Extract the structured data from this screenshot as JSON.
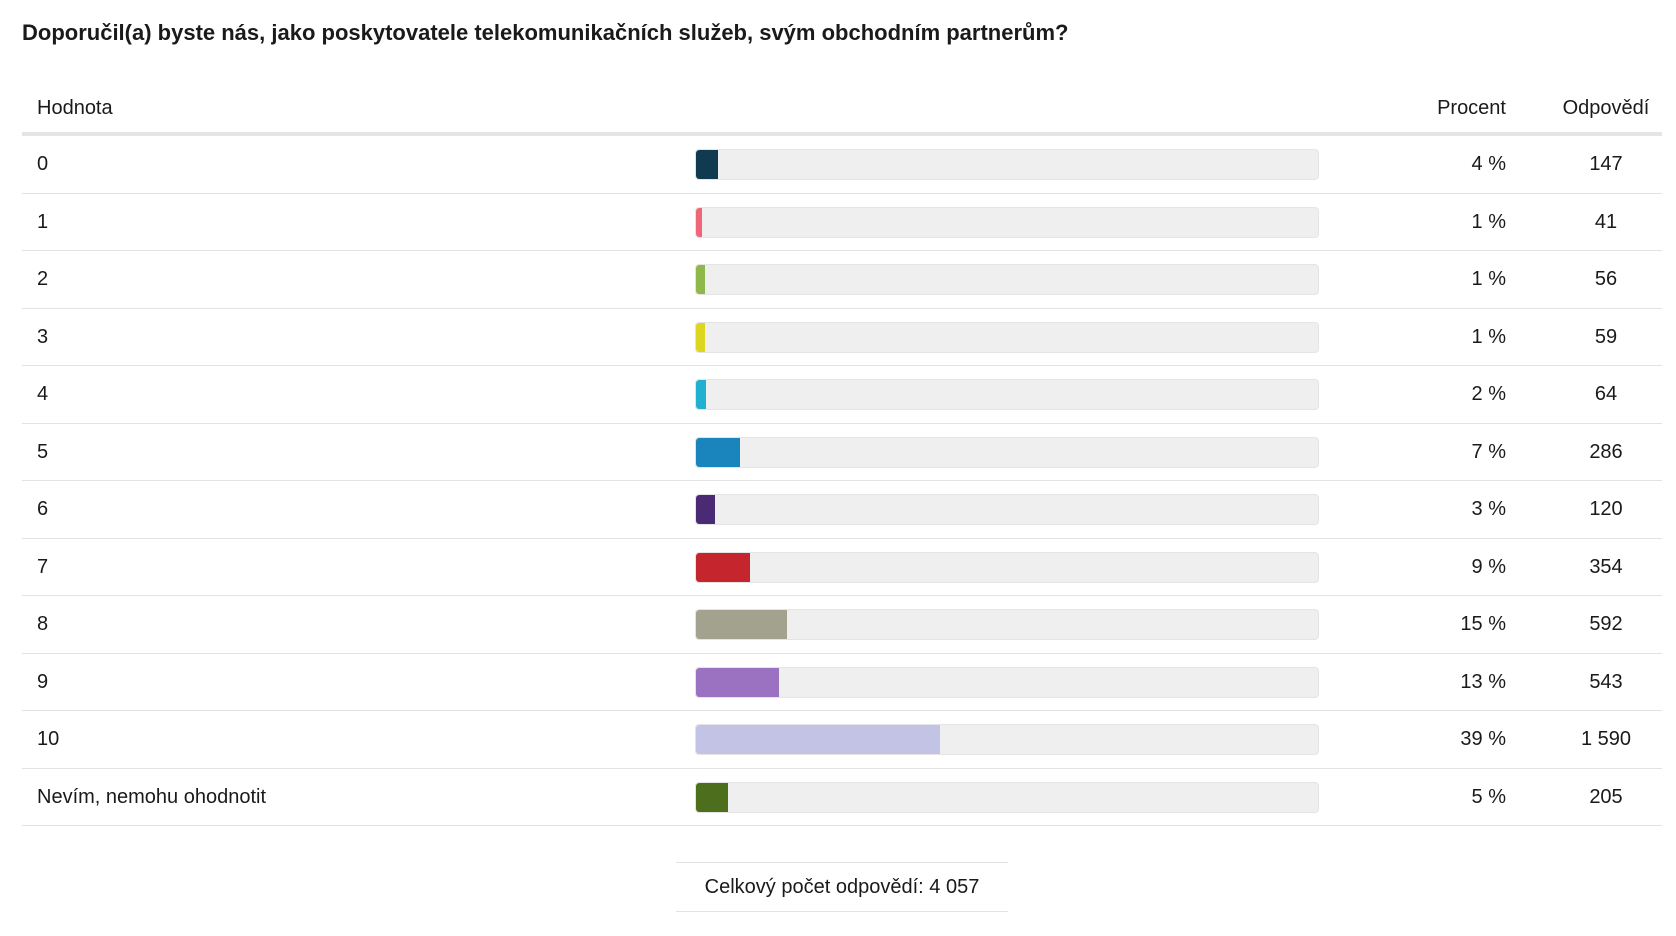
{
  "title": "Doporučil(a) byste nás, jako poskytovatele telekomunikačních služeb, svým obchodním partnerům?",
  "header": {
    "value": "Hodnota",
    "percent": "Procent",
    "count": "Odpovědí"
  },
  "total": {
    "label": "Celkový počet odpovědí:",
    "value": "4 057"
  },
  "chart_data": {
    "type": "bar",
    "title": "Doporučil(a) byste nás, jako poskytovatele telekomunikačních služeb, svým obchodním partnerům?",
    "orientation": "horizontal",
    "xlim": [
      0,
      100
    ],
    "rows": [
      {
        "label": "0",
        "percent_text": "4 %",
        "count_text": "147",
        "percent": 3.6,
        "count": 147,
        "color": "#0f3a4f"
      },
      {
        "label": "1",
        "percent_text": "1 %",
        "count_text": "41",
        "percent": 1.0,
        "count": 41,
        "color": "#ee6677"
      },
      {
        "label": "2",
        "percent_text": "1 %",
        "count_text": "56",
        "percent": 1.4,
        "count": 56,
        "color": "#8fb84a"
      },
      {
        "label": "3",
        "percent_text": "1 %",
        "count_text": "59",
        "percent": 1.5,
        "count": 59,
        "color": "#dcd61f"
      },
      {
        "label": "4",
        "percent_text": "2 %",
        "count_text": "64",
        "percent": 1.6,
        "count": 64,
        "color": "#22b0d0"
      },
      {
        "label": "5",
        "percent_text": "7 %",
        "count_text": "286",
        "percent": 7.0,
        "count": 286,
        "color": "#1a85bd"
      },
      {
        "label": "6",
        "percent_text": "3 %",
        "count_text": "120",
        "percent": 3.0,
        "count": 120,
        "color": "#4a2a74"
      },
      {
        "label": "7",
        "percent_text": "9 %",
        "count_text": "354",
        "percent": 8.7,
        "count": 354,
        "color": "#c5262d"
      },
      {
        "label": "8",
        "percent_text": "15 %",
        "count_text": "592",
        "percent": 14.6,
        "count": 592,
        "color": "#a3a28f"
      },
      {
        "label": "9",
        "percent_text": "13 %",
        "count_text": "543",
        "percent": 13.4,
        "count": 543,
        "color": "#9b72c2"
      },
      {
        "label": "10",
        "percent_text": "39 %",
        "count_text": "1 590",
        "percent": 39.2,
        "count": 1590,
        "color": "#c3c3e6"
      },
      {
        "label": "Nevím, nemohu ohodnotit",
        "percent_text": "5 %",
        "count_text": "205",
        "percent": 5.1,
        "count": 205,
        "color": "#4d6e1c"
      }
    ]
  }
}
